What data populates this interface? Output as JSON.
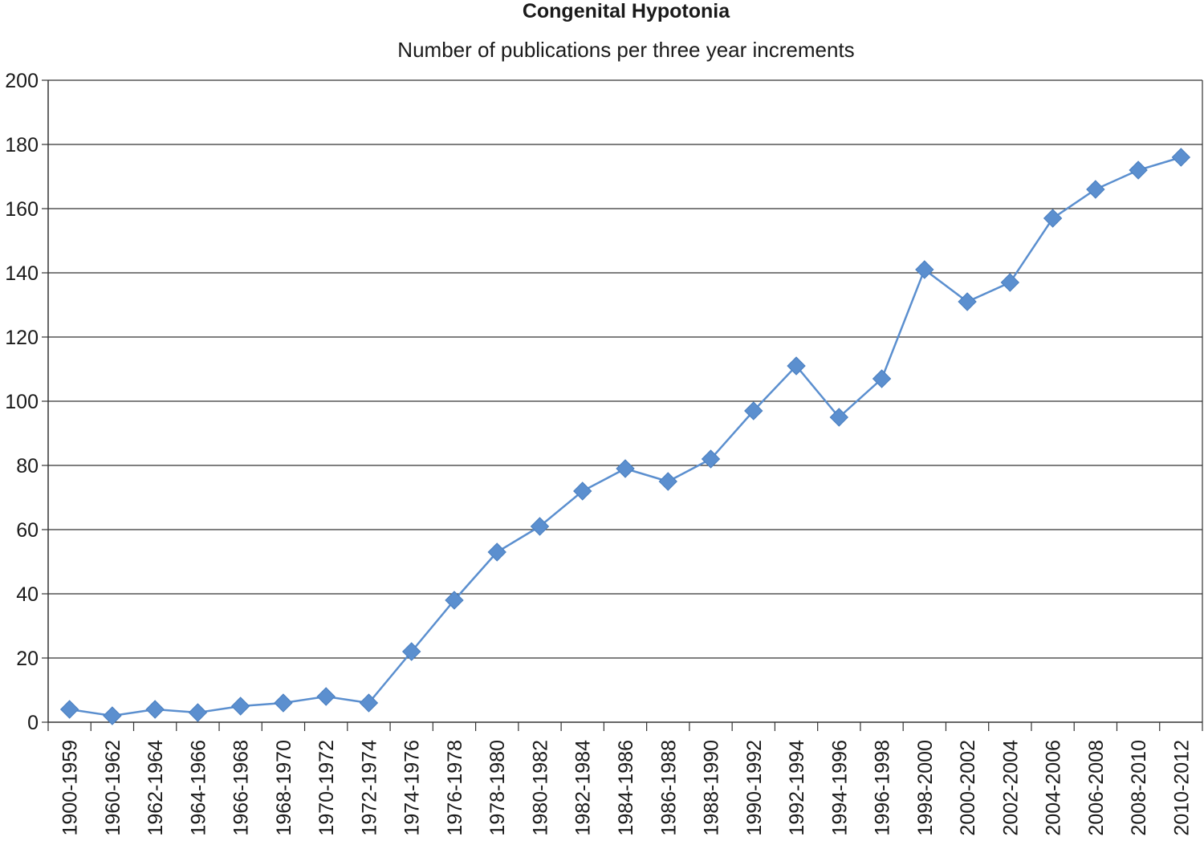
{
  "chart_data": {
    "type": "line",
    "title": "Congenital Hypotonia",
    "subtitle": "Number of publications per three year increments",
    "xlabel": "",
    "ylabel": "",
    "ylim": [
      0,
      200
    ],
    "yticks": [
      0,
      20,
      40,
      60,
      80,
      100,
      120,
      140,
      160,
      180,
      200
    ],
    "grid": true,
    "legend": "none",
    "categories": [
      "1900-1959",
      "1960-1962",
      "1962-1964",
      "1964-1966",
      "1966-1968",
      "1968-1970",
      "1970-1972",
      "1972-1974",
      "1974-1976",
      "1976-1978",
      "1978-1980",
      "1980-1982",
      "1982-1984",
      "1984-1986",
      "1986-1988",
      "1988-1990",
      "1990-1992",
      "1992-1994",
      "1994-1996",
      "1996-1998",
      "1998-2000",
      "2000-2002",
      "2002-2004",
      "2004-2006",
      "2006-2008",
      "2008-2010",
      "2010-2012"
    ],
    "series": [
      {
        "name": "Publications",
        "color": "#5b8fcf",
        "marker": "diamond",
        "values": [
          4,
          2,
          4,
          3,
          5,
          6,
          8,
          6,
          22,
          38,
          53,
          61,
          72,
          79,
          75,
          82,
          97,
          111,
          95,
          107,
          141,
          131,
          137,
          157,
          166,
          172,
          176
        ]
      }
    ]
  }
}
